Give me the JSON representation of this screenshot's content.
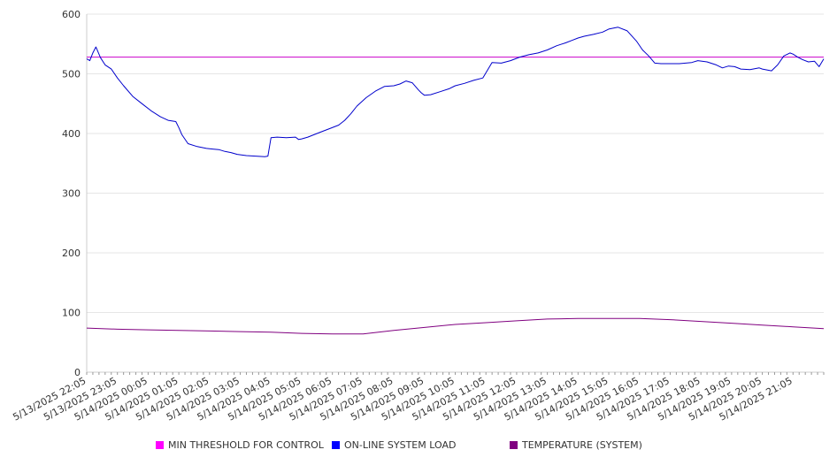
{
  "chart_data": {
    "type": "line",
    "title": "",
    "xlabel": "",
    "ylabel": "",
    "ylim": [
      0,
      600
    ],
    "yticks": [
      0,
      100,
      200,
      300,
      400,
      500,
      600
    ],
    "grid": true,
    "legend_position": "bottom",
    "x_labels": [
      "5/13/2025 22:05",
      "5/13/2025 23:05",
      "5/14/2025 00:05",
      "5/14/2025 01:05",
      "5/14/2025 02:05",
      "5/14/2025 03:05",
      "5/14/2025 04:05",
      "5/14/2025 05:05",
      "5/14/2025 06:05",
      "5/14/2025 07:05",
      "5/14/2025 08:05",
      "5/14/2025 09:05",
      "5/14/2025 10:05",
      "5/14/2025 11:05",
      "5/14/2025 12:05",
      "5/14/2025 13:05",
      "5/14/2025 14:05",
      "5/14/2025 15:05",
      "5/14/2025 16:05",
      "5/14/2025 17:05",
      "5/14/2025 18:05",
      "5/14/2025 19:05",
      "5/14/2025 20:05",
      "5/14/2025 21:05"
    ],
    "x_range_hours": [
      0,
      24
    ],
    "series": [
      {
        "name": "MIN THRESHOLD FOR CONTROL",
        "color": "#cc00cc",
        "x_hours": [
          0,
          24
        ],
        "values": [
          528,
          528
        ]
      },
      {
        "name": "ON-LINE SYSTEM LOAD",
        "color": "#0000cc",
        "x_hours": [
          0,
          0.1,
          0.2,
          0.3,
          0.45,
          0.6,
          0.8,
          1.0,
          1.2,
          1.5,
          1.8,
          2.1,
          2.4,
          2.65,
          2.9,
          3.0,
          3.1,
          3.3,
          3.6,
          3.9,
          4.1,
          4.3,
          4.5,
          4.7,
          4.9,
          5.2,
          5.5,
          5.8,
          5.9,
          6.0,
          6.2,
          6.5,
          6.8,
          6.9,
          7.0,
          7.2,
          7.4,
          7.6,
          7.9,
          8.2,
          8.4,
          8.6,
          8.8,
          9.1,
          9.4,
          9.7,
          10.0,
          10.2,
          10.4,
          10.6,
          10.8,
          10.9,
          11.0,
          11.2,
          11.5,
          11.8,
          12.0,
          12.3,
          12.6,
          12.9,
          13.2,
          13.5,
          13.8,
          14.1,
          14.4,
          14.7,
          15.0,
          15.3,
          15.6,
          15.8,
          16.0,
          16.2,
          16.5,
          16.8,
          17.0,
          17.3,
          17.6,
          17.9,
          18.1,
          18.3,
          18.5,
          18.7,
          19.0,
          19.3,
          19.5,
          19.7,
          19.9,
          20.2,
          20.5,
          20.7,
          20.9,
          21.1,
          21.3,
          21.6,
          21.9,
          22.0,
          22.3,
          22.5,
          22.7,
          22.9,
          23.0,
          23.15,
          23.3,
          23.5,
          23.7,
          23.85,
          24.0
        ],
        "values": [
          525,
          522,
          535,
          545,
          527,
          515,
          508,
          493,
          480,
          462,
          450,
          438,
          428,
          422,
          420,
          410,
          398,
          383,
          378,
          375,
          374,
          373,
          370,
          368,
          365,
          363,
          362,
          361,
          362,
          393,
          394,
          393,
          394,
          390,
          391,
          394,
          398,
          402,
          408,
          414,
          422,
          433,
          446,
          460,
          471,
          479,
          480,
          483,
          488,
          485,
          473,
          468,
          464,
          465,
          470,
          475,
          480,
          484,
          489,
          493,
          519,
          518,
          522,
          528,
          532,
          535,
          540,
          547,
          552,
          556,
          560,
          563,
          566,
          570,
          575,
          578,
          572,
          555,
          540,
          530,
          518,
          517,
          517,
          517,
          518,
          519,
          522,
          520,
          515,
          510,
          513,
          512,
          508,
          507,
          510,
          508,
          505,
          515,
          530,
          535,
          533,
          528,
          524,
          520,
          521,
          512,
          525
        ]
      },
      {
        "name": "TEMPERATURE (SYSTEM)",
        "color": "#800080",
        "x_hours": [
          0,
          1,
          2,
          3,
          4,
          5,
          6,
          7,
          8,
          9,
          10,
          11,
          12,
          13,
          14,
          15,
          16,
          17,
          18,
          19,
          20,
          21,
          22,
          23,
          24
        ],
        "values": [
          74,
          72,
          71,
          70,
          69,
          68,
          67,
          65,
          64,
          64,
          70,
          75,
          80,
          83,
          86,
          89,
          90,
          90,
          90,
          88,
          85,
          82,
          79,
          76,
          73
        ]
      }
    ]
  }
}
